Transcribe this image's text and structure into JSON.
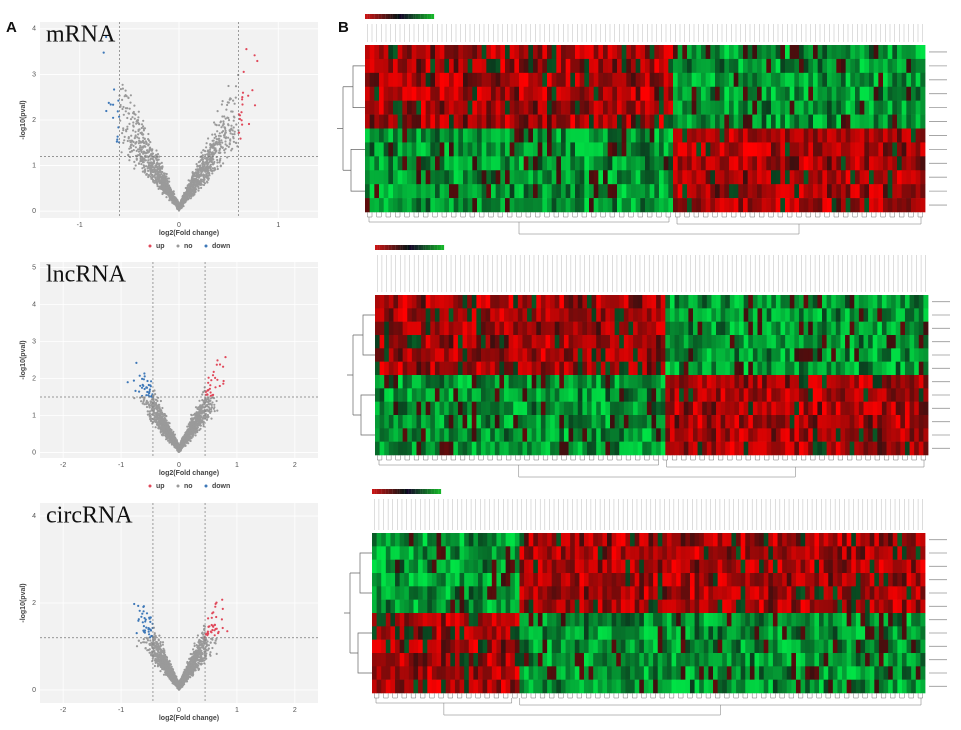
{
  "panels": {
    "A": {
      "label": "A",
      "plots": [
        {
          "title": "mRNA",
          "ylabel": "-log10(pval)",
          "xlabel": "log2(Fold change)",
          "xticks": [
            -1,
            0,
            1
          ],
          "yticks": [
            0,
            1,
            2,
            3,
            4
          ],
          "legend": [
            "up",
            "no",
            "down"
          ]
        },
        {
          "title": "lncRNA",
          "ylabel": "-log10(pval)",
          "xlabel": "log2(Fold change)",
          "xticks": [
            -2,
            -1,
            0,
            1,
            2
          ],
          "yticks": [
            0,
            1,
            2,
            3,
            4,
            5
          ],
          "legend": [
            "up",
            "no",
            "down"
          ]
        },
        {
          "title": "circRNA",
          "ylabel": "-log10(pval)",
          "xlabel": "log2(Fold change)",
          "xticks": [
            -2,
            -1,
            0,
            1,
            2
          ],
          "yticks": [
            0,
            2,
            4
          ]
        }
      ]
    },
    "B": {
      "label": "B"
    }
  }
}
